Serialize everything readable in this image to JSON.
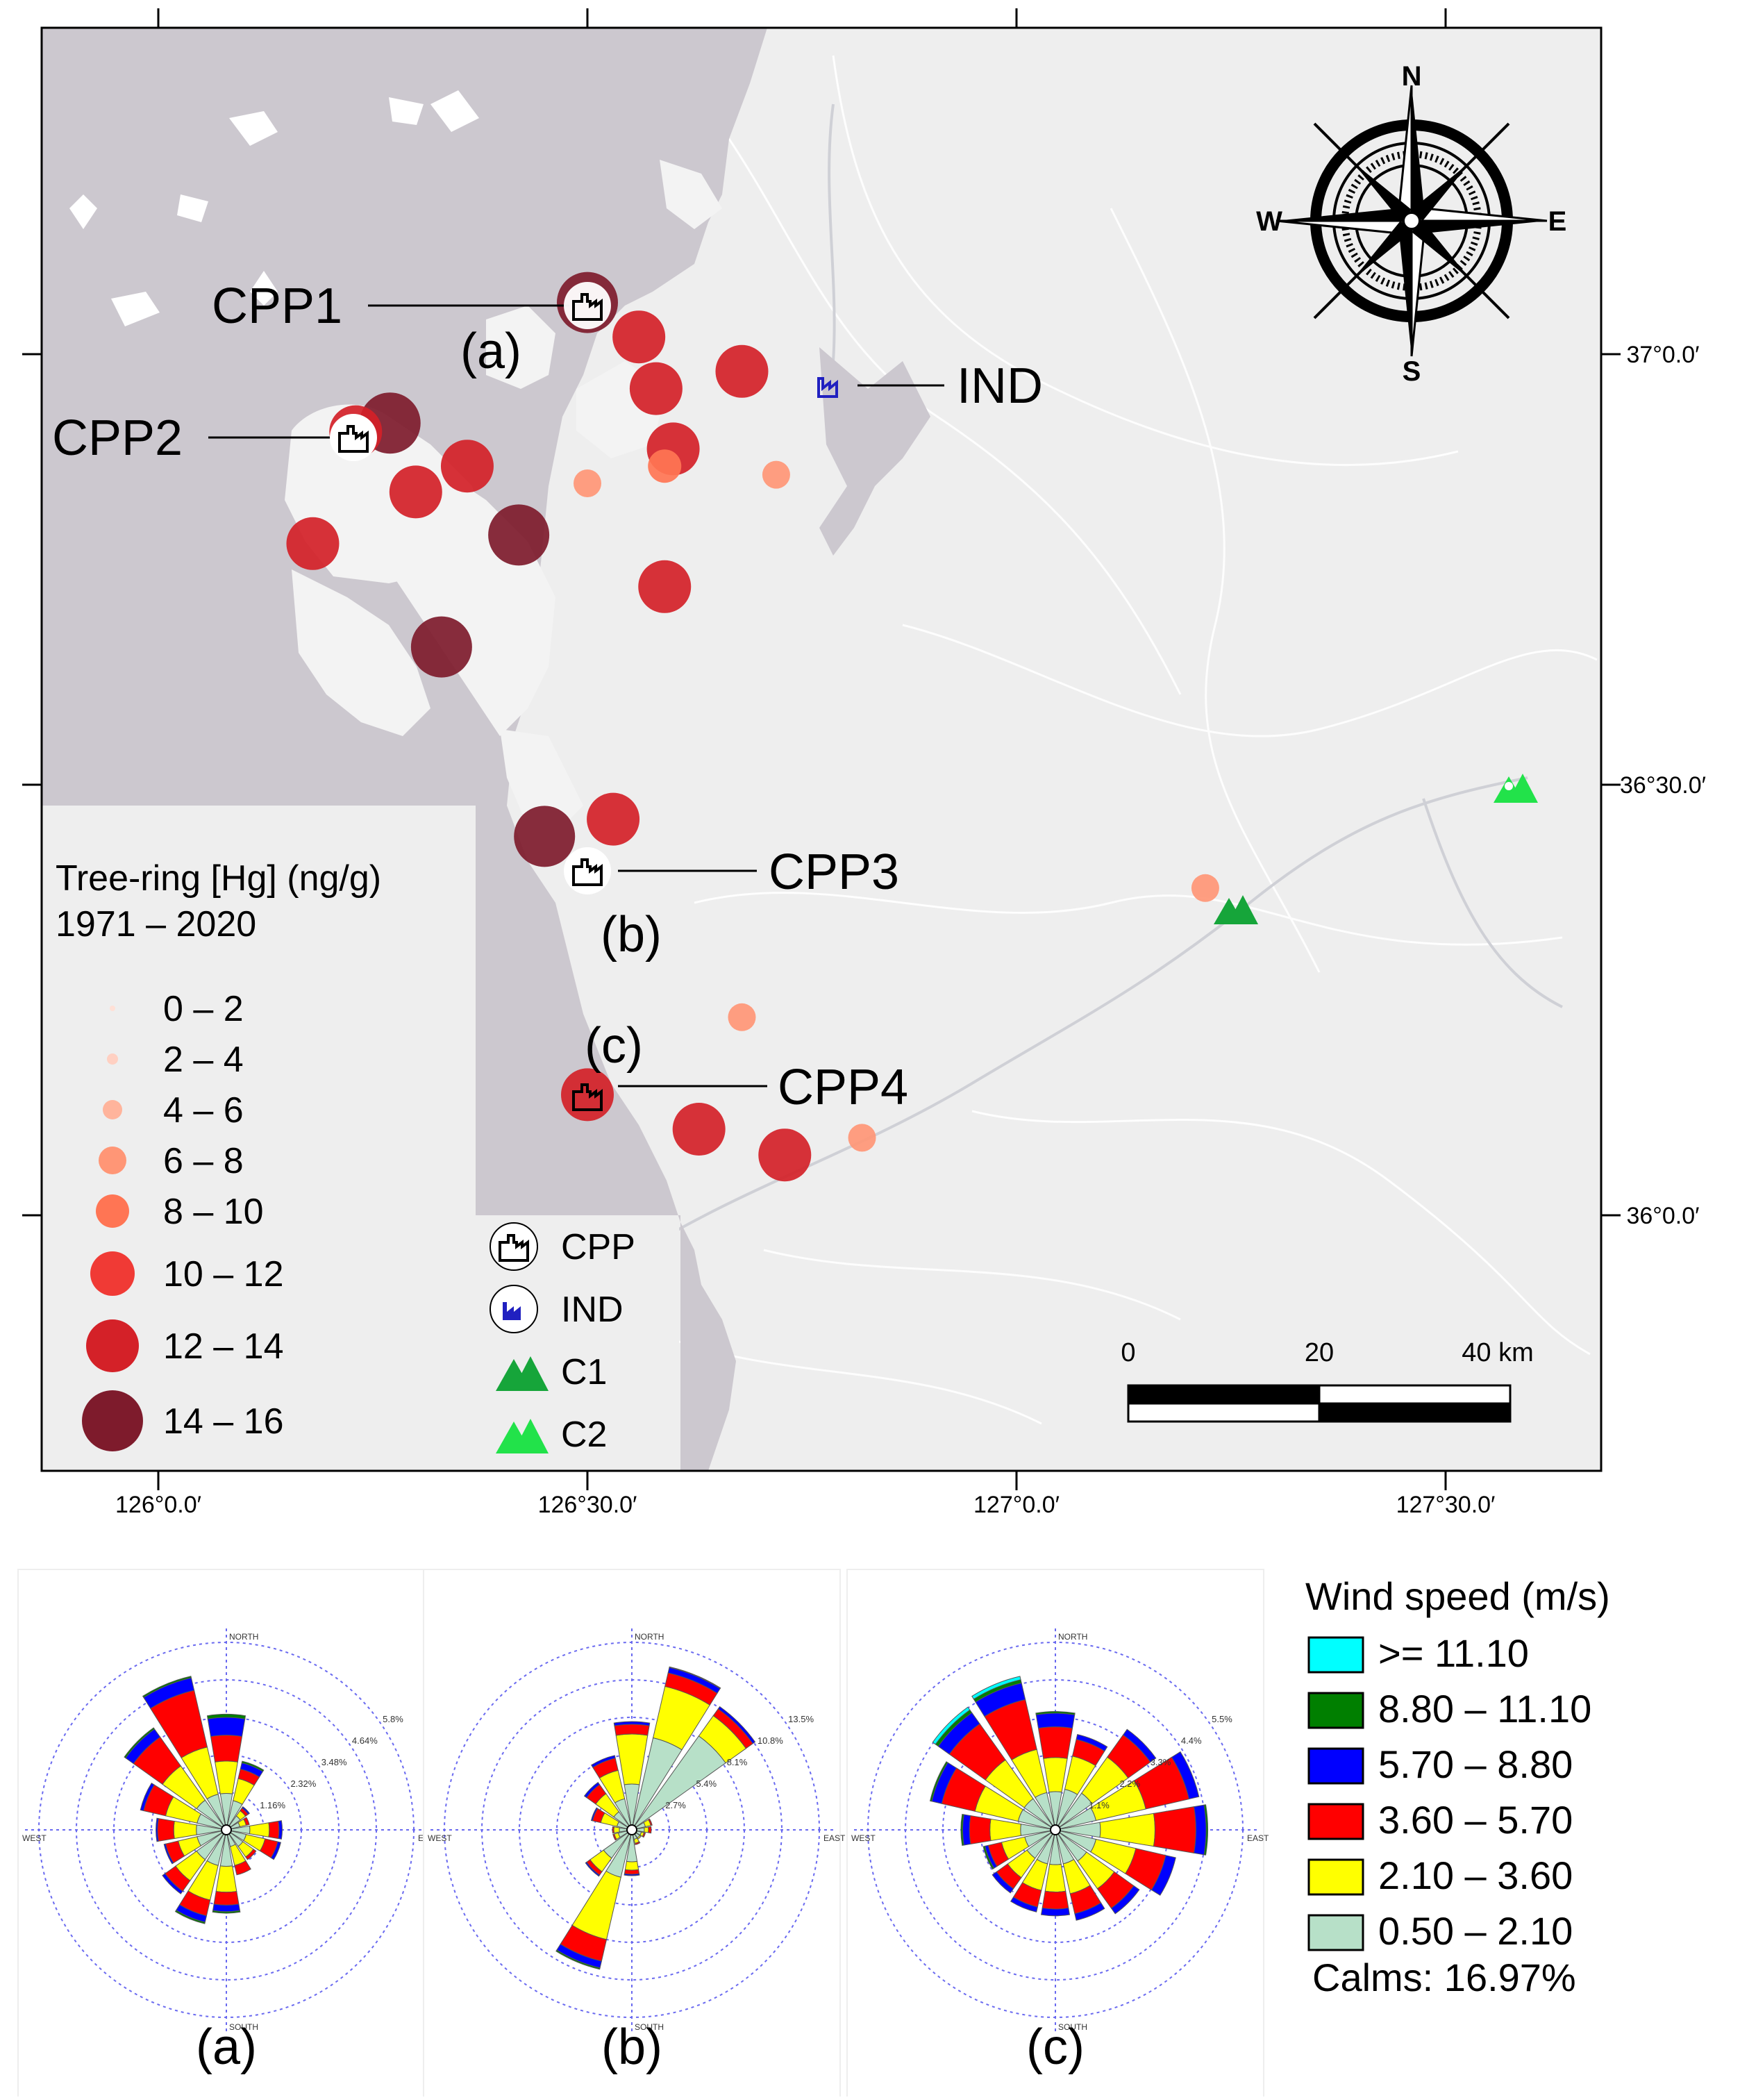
{
  "map": {
    "lon_ticks": [
      "126°0.0′",
      "126°30.0′",
      "127°0.0′",
      "127°30.0′"
    ],
    "lat_ticks": [
      "37°0.0′",
      "36°30.0′",
      "36°0.0′"
    ],
    "compass": {
      "n": "N",
      "s": "S",
      "e": "E",
      "w": "W"
    },
    "scale_bar": {
      "labels": [
        "0",
        "20",
        "40 km"
      ]
    },
    "sources": [
      {
        "id": "CPP1",
        "sub": "(a)",
        "type": "CPP"
      },
      {
        "id": "CPP2",
        "sub": "",
        "type": "CPP"
      },
      {
        "id": "CPP3",
        "sub": "(b)",
        "type": "CPP"
      },
      {
        "id": "CPP4",
        "sub": "(c)",
        "type": "CPP"
      },
      {
        "id": "IND",
        "sub": "",
        "type": "IND"
      }
    ],
    "hg_sites": [
      {
        "lon": 126.5,
        "lat": 37.06,
        "class": "14 – 16"
      },
      {
        "lon": 126.56,
        "lat": 37.02,
        "class": "12 – 14"
      },
      {
        "lon": 126.58,
        "lat": 36.96,
        "class": "12 – 14"
      },
      {
        "lon": 126.68,
        "lat": 36.98,
        "class": "12 – 14"
      },
      {
        "lon": 126.27,
        "lat": 36.92,
        "class": "14 – 16"
      },
      {
        "lon": 126.23,
        "lat": 36.91,
        "class": "12 – 14"
      },
      {
        "lon": 126.6,
        "lat": 36.89,
        "class": "12 – 14"
      },
      {
        "lon": 126.59,
        "lat": 36.87,
        "class": "8 – 10"
      },
      {
        "lon": 126.36,
        "lat": 36.87,
        "class": "12 – 14"
      },
      {
        "lon": 126.3,
        "lat": 36.84,
        "class": "12 – 14"
      },
      {
        "lon": 126.5,
        "lat": 36.85,
        "class": "6 – 8"
      },
      {
        "lon": 126.72,
        "lat": 36.86,
        "class": "6 – 8"
      },
      {
        "lon": 126.18,
        "lat": 36.78,
        "class": "12 – 14"
      },
      {
        "lon": 126.42,
        "lat": 36.79,
        "class": "14 – 16"
      },
      {
        "lon": 126.59,
        "lat": 36.73,
        "class": "12 – 14"
      },
      {
        "lon": 126.33,
        "lat": 36.66,
        "class": "14 – 16"
      },
      {
        "lon": 126.53,
        "lat": 36.46,
        "class": "12 – 14"
      },
      {
        "lon": 126.45,
        "lat": 36.44,
        "class": "14 – 16"
      },
      {
        "lon": 126.68,
        "lat": 36.23,
        "class": "6 – 8"
      },
      {
        "lon": 126.5,
        "lat": 36.14,
        "class": "12 – 14"
      },
      {
        "lon": 126.63,
        "lat": 36.1,
        "class": "12 – 14"
      },
      {
        "lon": 126.73,
        "lat": 36.07,
        "class": "12 – 14"
      },
      {
        "lon": 126.82,
        "lat": 36.09,
        "class": "6 – 8"
      },
      {
        "lon": 127.22,
        "lat": 36.38,
        "class": "6 – 8"
      }
    ],
    "c_sites": [
      {
        "lon": 127.23,
        "lat": 36.37,
        "class": "C1"
      },
      {
        "lon": 127.6,
        "lat": 36.48,
        "class": "C2"
      }
    ],
    "hg_legend": {
      "title": "Tree-ring [Hg] (ng/g)",
      "period": "1971 – 2020",
      "classes": [
        {
          "label": "0 – 2",
          "color": "#ffe0d6"
        },
        {
          "label": "2 – 4",
          "color": "#ffd0c2"
        },
        {
          "label": "4 – 6",
          "color": "#ffb49c"
        },
        {
          "label": "6 – 8",
          "color": "#ff9676"
        },
        {
          "label": "8 – 10",
          "color": "#ff7554"
        },
        {
          "label": "10 – 12",
          "color": "#f03a35"
        },
        {
          "label": "12 – 14",
          "color": "#d42128"
        },
        {
          "label": "14 – 16",
          "color": "#7e1b2c"
        }
      ]
    },
    "symbol_legend": [
      {
        "label": "CPP",
        "icon": "factory-icon"
      },
      {
        "label": "IND",
        "icon": "industry-icon"
      },
      {
        "label": "C1",
        "icon": "triangle-icon",
        "color": "#16a53a"
      },
      {
        "label": "C2",
        "icon": "triangle-icon",
        "color": "#22e24a"
      }
    ]
  },
  "wind": {
    "legend": {
      "title": "Wind speed (m/s)",
      "classes": [
        {
          "label": ">= 11.10",
          "color": "#00ffff"
        },
        {
          "label": "8.80 – 11.10",
          "color": "#007f00"
        },
        {
          "label": "5.70 – 8.80",
          "color": "#0000ff"
        },
        {
          "label": "3.60 – 5.70",
          "color": "#ff0000"
        },
        {
          "label": "2.10 – 3.60",
          "color": "#ffff00"
        },
        {
          "label": "0.50 – 2.10",
          "color": "#b7e0c8"
        }
      ],
      "calms": "Calms: 16.97%"
    },
    "direction_labels": {
      "north": "NORTH",
      "south": "SOUTH",
      "east": "EAST",
      "west": "WEST"
    },
    "roses": [
      {
        "label": "(a)",
        "ring_labels": [
          "1.16%",
          "2.32%",
          "3.48%",
          "4.64%",
          "5.8%"
        ],
        "ring_max": 5.8,
        "petals": [
          [
            1.0,
            1.0,
            0.8,
            0.55,
            0.1,
            0.0
          ],
          [
            0.8,
            0.7,
            0.3,
            0.2,
            0.05,
            0.0
          ],
          [
            0.4,
            0.2,
            0.1,
            0.05,
            0.0,
            0.0
          ],
          [
            0.3,
            0.2,
            0.1,
            0.0,
            0.0,
            0.0
          ],
          [
            0.6,
            0.6,
            0.3,
            0.1,
            0.0,
            0.0
          ],
          [
            0.5,
            0.6,
            0.4,
            0.1,
            0.0,
            0.0
          ],
          [
            0.5,
            0.4,
            0.1,
            0.0,
            0.0,
            0.0
          ],
          [
            0.4,
            0.6,
            0.3,
            0.0,
            0.0,
            0.0
          ],
          [
            1.0,
            0.8,
            0.4,
            0.2,
            0.05,
            0.0
          ],
          [
            1.0,
            1.1,
            0.5,
            0.2,
            0.05,
            0.0
          ],
          [
            1.0,
            0.8,
            0.4,
            0.1,
            0.0,
            0.0
          ],
          [
            0.8,
            0.6,
            0.4,
            0.05,
            0.0,
            0.0
          ],
          [
            0.8,
            0.7,
            0.5,
            0.05,
            0.0,
            0.0
          ],
          [
            0.8,
            1.0,
            0.7,
            0.1,
            0.0,
            0.0
          ],
          [
            1.0,
            1.3,
            1.1,
            0.3,
            0.05,
            0.0
          ],
          [
            1.0,
            1.5,
            1.8,
            0.4,
            0.05,
            0.0
          ]
        ]
      },
      {
        "label": "(b)",
        "ring_labels": [
          "2.7%",
          "5.4%",
          "8.1%",
          "10.8%",
          "13.5%"
        ],
        "ring_max": 13.5,
        "petals": [
          [
            3.0,
            3.6,
            0.7,
            0.2,
            0.0,
            0.0
          ],
          [
            6.5,
            3.8,
            1.0,
            0.4,
            0.05,
            0.0
          ],
          [
            8.0,
            1.8,
            0.6,
            0.2,
            0.0,
            0.0
          ],
          [
            0.7,
            0.4,
            0.1,
            0.0,
            0.0,
            0.0
          ],
          [
            0.6,
            0.3,
            0.2,
            0.0,
            0.0,
            0.0
          ],
          [
            0.4,
            0.2,
            0.1,
            0.0,
            0.0,
            0.0
          ],
          [
            0.4,
            0.1,
            0.0,
            0.0,
            0.0,
            0.0
          ],
          [
            0.4,
            0.3,
            0.1,
            0.0,
            0.0,
            0.0
          ],
          [
            2.0,
            0.6,
            0.3,
            0.1,
            0.0,
            0.0
          ],
          [
            3.2,
            4.6,
            1.6,
            0.5,
            0.1,
            0.0
          ],
          [
            2.2,
            1.2,
            0.3,
            0.1,
            0.0,
            0.0
          ],
          [
            0.7,
            0.3,
            0.1,
            0.0,
            0.0,
            0.0
          ],
          [
            0.6,
            0.4,
            0.1,
            0.0,
            0.0,
            0.0
          ],
          [
            0.8,
            1.2,
            0.6,
            0.1,
            0.0,
            0.0
          ],
          [
            1.3,
            1.6,
            0.8,
            0.2,
            0.0,
            0.0
          ],
          [
            2.0,
            2.1,
            0.9,
            0.2,
            0.0,
            0.0
          ]
        ]
      },
      {
        "label": "(c)",
        "ring_labels": [
          "1.1%",
          "2.2%",
          "3.3%",
          "4.4%",
          "5.5%"
        ],
        "ring_max": 5.5,
        "petals": [
          [
            1.0,
            1.0,
            0.9,
            0.4,
            0.05,
            0.0
          ],
          [
            1.1,
            1.0,
            0.5,
            0.15,
            0.0,
            0.0
          ],
          [
            1.2,
            1.3,
            0.8,
            0.2,
            0.0,
            0.0
          ],
          [
            1.1,
            1.5,
            1.3,
            0.3,
            0.0,
            0.0
          ],
          [
            1.2,
            1.6,
            1.2,
            0.3,
            0.05,
            0.0
          ],
          [
            1.1,
            1.2,
            0.9,
            0.3,
            0.0,
            0.0
          ],
          [
            1.0,
            1.0,
            0.7,
            0.2,
            0.0,
            0.0
          ],
          [
            0.9,
            0.9,
            0.6,
            0.2,
            0.0,
            0.0
          ],
          [
            0.9,
            0.8,
            0.5,
            0.2,
            0.0,
            0.0
          ],
          [
            0.9,
            0.8,
            0.5,
            0.15,
            0.0,
            0.0
          ],
          [
            0.9,
            0.7,
            0.4,
            0.15,
            0.0,
            0.0
          ],
          [
            0.8,
            0.7,
            0.4,
            0.1,
            0.05,
            0.0
          ],
          [
            0.9,
            0.9,
            0.6,
            0.2,
            0.05,
            0.0
          ],
          [
            1.0,
            1.3,
            1.0,
            0.3,
            0.05,
            0.0
          ],
          [
            1.0,
            1.4,
            1.3,
            0.4,
            0.1,
            0.1
          ],
          [
            1.0,
            1.3,
            1.5,
            0.5,
            0.1,
            0.1
          ]
        ]
      }
    ]
  }
}
